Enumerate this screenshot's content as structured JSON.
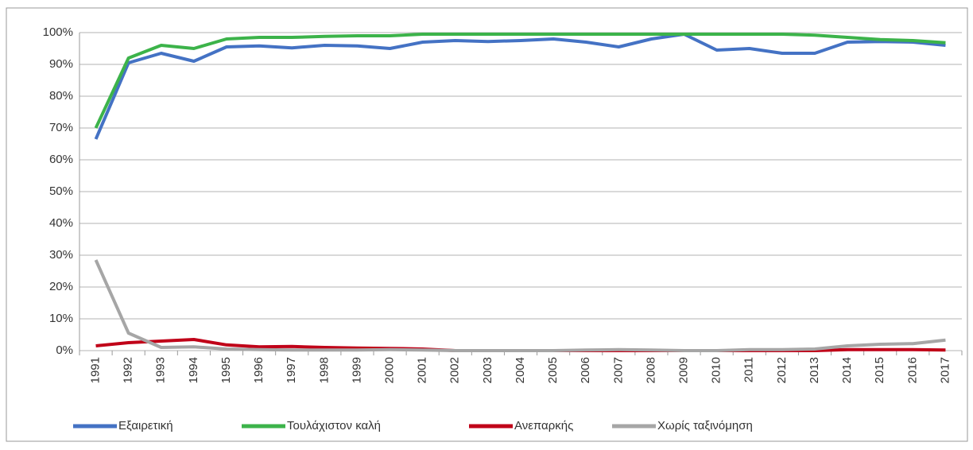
{
  "chart_data": {
    "type": "line",
    "categories": [
      "1991",
      "1992",
      "1993",
      "1994",
      "1995",
      "1996",
      "1997",
      "1998",
      "1999",
      "2000",
      "2001",
      "2002",
      "2003",
      "2004",
      "2005",
      "2006",
      "2007",
      "2008",
      "2009",
      "2010",
      "2011",
      "2012",
      "2013",
      "2014",
      "2015",
      "2016",
      "2017"
    ],
    "series": [
      {
        "name": "Εξαιρετική",
        "color": "#4472c4",
        "values": [
          66.5,
          90.5,
          93.5,
          91,
          95.5,
          95.8,
          95.2,
          96,
          95.8,
          95,
          97,
          97.5,
          97.2,
          97.5,
          98,
          97,
          95.5,
          98,
          99.5,
          94.5,
          95,
          93.5,
          93.5,
          97,
          97.2,
          97,
          96
        ]
      },
      {
        "name": "Τουλάχιστον καλή",
        "color": "#3cb34a",
        "values": [
          70,
          92,
          96,
          95,
          98,
          98.5,
          98.5,
          98.8,
          99,
          99,
          99.5,
          99.5,
          99.5,
          99.5,
          99.5,
          99.5,
          99.5,
          99.5,
          99.5,
          99.5,
          99.5,
          99.5,
          99.2,
          98.5,
          97.8,
          97.5,
          96.8
        ]
      },
      {
        "name": "Ανεπαρκής",
        "color": "#c00018",
        "values": [
          1.5,
          2.5,
          3,
          3.5,
          1.8,
          1.2,
          1.3,
          1,
          0.8,
          0.7,
          0.5,
          0,
          0,
          0,
          0,
          0,
          0,
          0,
          0,
          0,
          0,
          0,
          0,
          0.3,
          0.3,
          0.3,
          0.2
        ]
      },
      {
        "name": "Χωρίς ταξινόμηση",
        "color": "#a6a6a6",
        "values": [
          28.5,
          5.5,
          1,
          1.2,
          0.5,
          0.3,
          0.2,
          0.2,
          0.2,
          0.3,
          0.2,
          0,
          0,
          0,
          0,
          0.2,
          0.3,
          0.2,
          0,
          0,
          0.3,
          0.3,
          0.5,
          1.5,
          2,
          2.2,
          3.3
        ]
      }
    ],
    "ylim": [
      0,
      100
    ],
    "yticks": [
      {
        "value": 0,
        "label": "0%"
      },
      {
        "value": 10,
        "label": "10%"
      },
      {
        "value": 20,
        "label": "20%"
      },
      {
        "value": 30,
        "label": "30%"
      },
      {
        "value": 40,
        "label": "40%"
      },
      {
        "value": 50,
        "label": "50%"
      },
      {
        "value": 60,
        "label": "60%"
      },
      {
        "value": 70,
        "label": "70%"
      },
      {
        "value": 80,
        "label": "80%"
      },
      {
        "value": 90,
        "label": "90%"
      },
      {
        "value": 100,
        "label": "100%"
      }
    ],
    "grid": true,
    "legend": "bottom"
  }
}
